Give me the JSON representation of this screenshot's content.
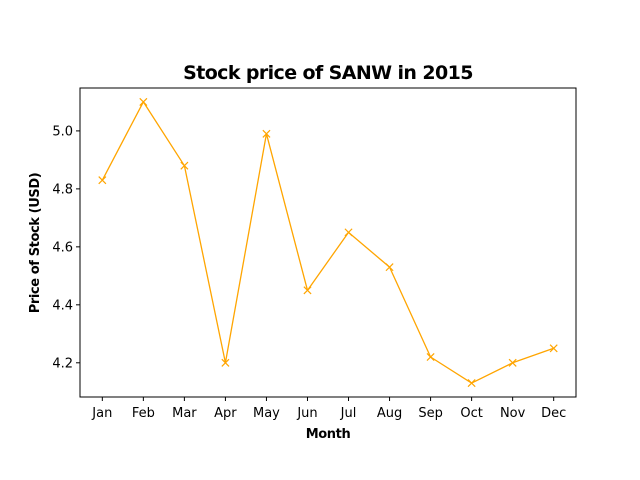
{
  "chart_data": {
    "type": "line",
    "title": "Stock price of SANW in 2015",
    "xlabel": "Month",
    "ylabel": "Price of Stock (USD)",
    "categories": [
      "Jan",
      "Feb",
      "Mar",
      "Apr",
      "May",
      "Jun",
      "Jul",
      "Aug",
      "Sep",
      "Oct",
      "Nov",
      "Dec"
    ],
    "series": [
      {
        "values": [
          4.83,
          5.1,
          4.88,
          4.2,
          4.99,
          4.45,
          4.65,
          4.53,
          4.22,
          4.13,
          4.2,
          4.25
        ],
        "color": "#FFA500",
        "marker": "x"
      }
    ],
    "yticks": [
      "4.2",
      "4.4",
      "4.6",
      "4.8",
      "5.0"
    ],
    "ylim": [
      4.082,
      5.148
    ],
    "grid": false
  }
}
